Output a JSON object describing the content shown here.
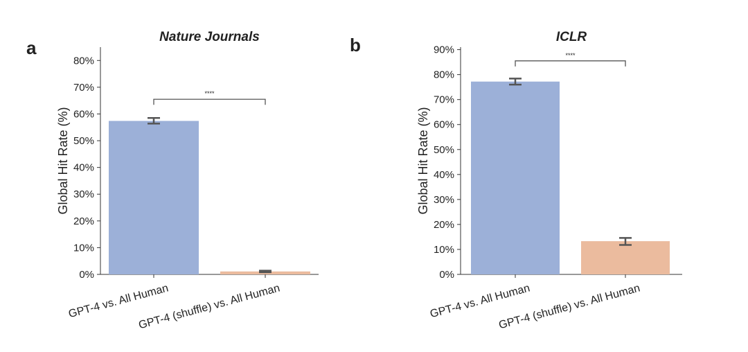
{
  "chart_data": [
    {
      "type": "bar",
      "panel_letter": "a",
      "title": "Nature Journals",
      "xlabel": "",
      "ylabel": "Global Hit Rate (%)",
      "ylim": [
        0,
        85
      ],
      "yticks": [
        0,
        10,
        20,
        30,
        40,
        50,
        60,
        70,
        80
      ],
      "ytick_labels": [
        "0%",
        "10%",
        "20%",
        "30%",
        "40%",
        "50%",
        "60%",
        "70%",
        "80%"
      ],
      "categories": [
        "GPT-4 vs. All Human",
        "GPT-4 (shuffle) vs. All Human"
      ],
      "values": [
        57.4,
        1.1
      ],
      "error_low": [
        56.4,
        0.8
      ],
      "error_high": [
        58.5,
        1.4
      ],
      "colors": [
        "#9cb0d8",
        "#ebbb9e"
      ],
      "significance": {
        "label": "****",
        "between": [
          0,
          1
        ],
        "y": 65.5
      },
      "grid": false,
      "legend": "none"
    },
    {
      "type": "bar",
      "panel_letter": "b",
      "title": "ICLR",
      "xlabel": "",
      "ylabel": "Global Hit Rate (%)",
      "ylim": [
        0,
        91
      ],
      "yticks": [
        0,
        10,
        20,
        30,
        40,
        50,
        60,
        70,
        80,
        90
      ],
      "ytick_labels": [
        "0%",
        "10%",
        "20%",
        "30%",
        "40%",
        "50%",
        "60%",
        "70%",
        "80%",
        "90%"
      ],
      "categories": [
        "GPT-4 vs. All Human",
        "GPT-4 (shuffle) vs. All Human"
      ],
      "values": [
        77.2,
        13.3
      ],
      "error_low": [
        76.0,
        11.8
      ],
      "error_high": [
        78.4,
        14.6
      ],
      "colors": [
        "#9cb0d8",
        "#ebbb9e"
      ],
      "significance": {
        "label": "****",
        "between": [
          0,
          1
        ],
        "y": 85.5
      },
      "grid": false,
      "legend": "none"
    }
  ]
}
